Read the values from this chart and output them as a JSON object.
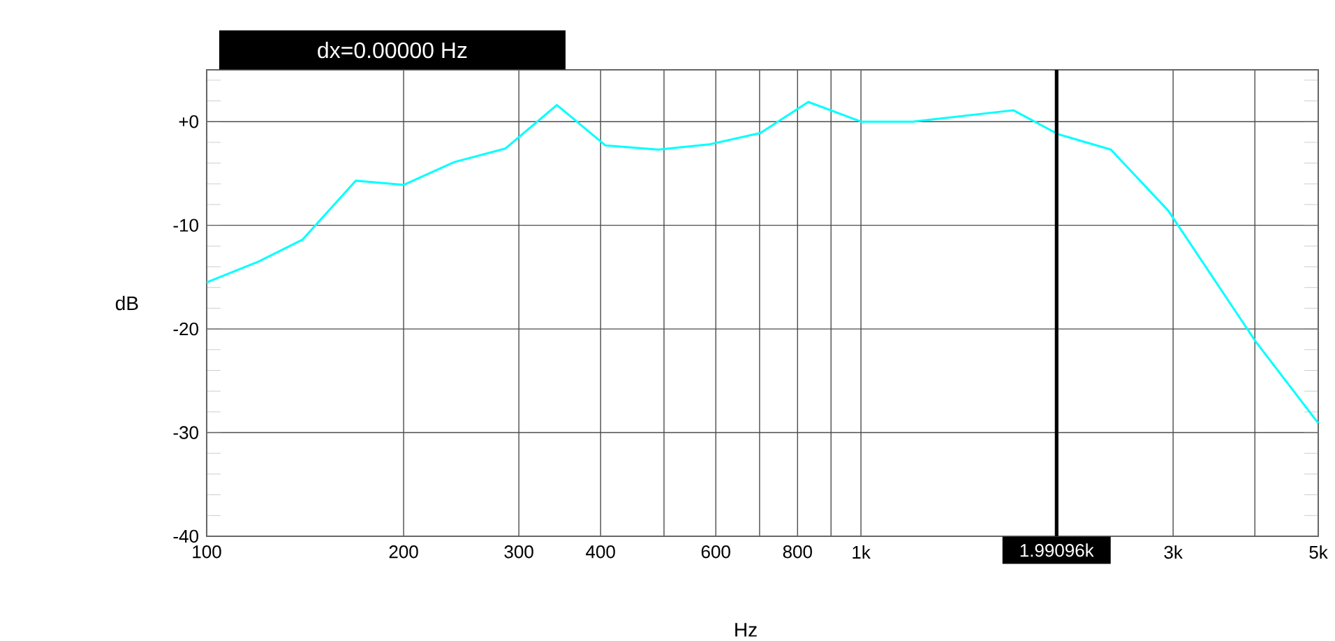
{
  "chart_data": {
    "type": "line",
    "xlabel": "Hz",
    "ylabel": "dB",
    "x": [
      100,
      120,
      140,
      169,
      200,
      239,
      286,
      343,
      407,
      490,
      586,
      702,
      831,
      1000,
      1200,
      1710,
      2000,
      2410,
      2950,
      4010,
      5000
    ],
    "series": [
      {
        "color": "#00ffff",
        "values": [
          -15.5,
          -13.5,
          -11.4,
          -5.7,
          -6.1,
          -3.9,
          -2.6,
          1.6,
          -2.3,
          -2.7,
          -2.2,
          -1.1,
          1.9,
          0,
          0,
          1.1,
          -1.2,
          -2.7,
          -8.6,
          -21.2,
          -29.1
        ]
      }
    ],
    "log": "x",
    "xlim": [
      100,
      5000
    ],
    "ylim": [
      -40,
      5
    ],
    "xticks": [
      100,
      200,
      300,
      400,
      {
        "value": 500,
        "label": null
      },
      600,
      {
        "value": 700,
        "label": null
      },
      800,
      {
        "value": 900,
        "label": null
      },
      {
        "value": 1000,
        "label": "1k"
      },
      {
        "value": 2000,
        "label": null
      },
      {
        "value": 3000,
        "label": "3k"
      },
      {
        "value": 4000,
        "label": null
      },
      {
        "value": 5000,
        "label": "5k"
      }
    ],
    "yticks": [
      -40,
      -30,
      -20,
      -10,
      {
        "value": 0,
        "label": "+0"
      }
    ],
    "grid": true,
    "marker": "none",
    "line_style": "solid",
    "ref_lines": [
      {
        "axis": "x",
        "value": 1990.96,
        "label": "1.99096k",
        "color": "#000000"
      }
    ],
    "annotations": [
      "dx=0.00000 Hz"
    ]
  }
}
